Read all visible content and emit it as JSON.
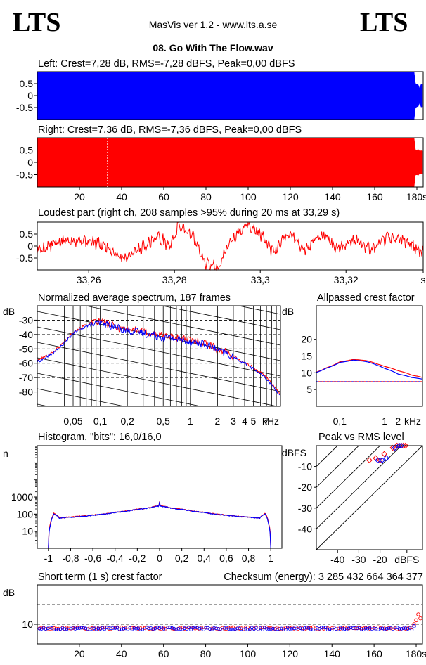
{
  "header": {
    "logo_left": "LTS",
    "logo_right": "LTS",
    "app_title": "MasVis ver 1.2 - www.lts.a.se",
    "file_name": "08. Go With The Flow.wav"
  },
  "chart_data": [
    {
      "id": "left-waveform",
      "type": "area",
      "title": "Left: Crest=7,28 dB, RMS=-7,28 dBFS, Peak=0,00 dBFS",
      "ylim": [
        -1,
        1
      ],
      "y_ticks": [
        "0.5",
        "0",
        "-0.5"
      ],
      "y_tick_values": [
        0.5,
        0,
        -0.5
      ],
      "xlim": [
        0,
        183
      ],
      "color": "#0000ff",
      "peak_level": 1.0,
      "fade_out_start_s": 179
    },
    {
      "id": "right-waveform",
      "type": "area",
      "title": "Right: Crest=7,36 dB, RMS=-7,36 dBFS, Peak=0,00 dBFS",
      "ylim": [
        -1,
        1
      ],
      "y_ticks": [
        "0.5",
        "0",
        "-0.5"
      ],
      "y_tick_values": [
        0.5,
        0,
        -0.5
      ],
      "xlim": [
        0,
        183
      ],
      "x_ticks": [
        "20",
        "40",
        "60",
        "80",
        "100",
        "120",
        "140",
        "160",
        "180s"
      ],
      "x_tick_values": [
        20,
        40,
        60,
        80,
        100,
        120,
        140,
        160,
        180
      ],
      "loudest_marker_s": 33.29,
      "color": "#ff0000",
      "peak_level": 1.0,
      "fade_out_start_s": 179
    },
    {
      "id": "loudest-part",
      "type": "line",
      "title": "Loudest part (right ch, 208 samples >95% during 20 ms at 33,29 s)",
      "xlim": [
        33.248,
        33.338
      ],
      "ylim": [
        -1,
        1
      ],
      "y_ticks": [
        "0.5",
        "0",
        "-0.5"
      ],
      "y_tick_values": [
        0.5,
        0,
        -0.5
      ],
      "x_ticks": [
        "33,26",
        "33,28",
        "33,3",
        "33,32",
        "s"
      ],
      "x_tick_values": [
        33.26,
        33.28,
        33.3,
        33.32,
        33.338
      ],
      "color": "#ff0000",
      "envelope_x": [
        33.248,
        33.252,
        33.256,
        33.26,
        33.264,
        33.268,
        33.272,
        33.276,
        33.279,
        33.281,
        33.284,
        33.287,
        33.29,
        33.293,
        33.297,
        33.3,
        33.303,
        33.307,
        33.31,
        33.314,
        33.318,
        33.322,
        33.326,
        33.33,
        33.334,
        33.338
      ],
      "envelope_y": [
        -0.2,
        0.1,
        0.3,
        0.2,
        0.0,
        -0.5,
        -0.1,
        0.4,
        0.0,
        0.9,
        0.5,
        -0.7,
        -0.9,
        0.2,
        0.9,
        0.5,
        -0.3,
        0.6,
        -0.2,
        0.5,
        -0.1,
        0.3,
        -0.2,
        0.4,
        0.2,
        -0.3
      ]
    },
    {
      "id": "spectrum",
      "type": "line",
      "title": "Normalized average spectrum, 187 frames",
      "ylabel": "dB",
      "xscale": "log",
      "xlim": [
        0.02,
        10
      ],
      "ylim": [
        -90,
        -20
      ],
      "y_ticks": [
        "-30",
        "-40",
        "-50",
        "-60",
        "-70",
        "-80"
      ],
      "y_tick_values": [
        -30,
        -40,
        -50,
        -60,
        -70,
        -80
      ],
      "x_ticks": [
        "0,05",
        "0,1",
        "0,2",
        "0,5",
        "1",
        "2",
        "3",
        "4",
        "5",
        "7",
        "kHz"
      ],
      "x_tick_values": [
        0.05,
        0.1,
        0.2,
        0.5,
        1,
        2,
        3,
        4,
        5,
        7,
        10
      ],
      "series": [
        {
          "color": "#ff0000",
          "x": [
            0.02,
            0.03,
            0.04,
            0.05,
            0.07,
            0.1,
            0.15,
            0.2,
            0.3,
            0.5,
            0.7,
            1,
            1.5,
            2,
            3,
            4,
            5,
            7,
            10
          ],
          "y": [
            -58,
            -52,
            -45,
            -38,
            -33,
            -31,
            -35,
            -36,
            -38,
            -41,
            -42,
            -44,
            -46,
            -50,
            -55,
            -60,
            -63,
            -70,
            -82
          ]
        },
        {
          "color": "#0000ff",
          "x": [
            0.02,
            0.03,
            0.04,
            0.05,
            0.07,
            0.1,
            0.15,
            0.2,
            0.3,
            0.5,
            0.7,
            1,
            1.5,
            2,
            3,
            4,
            5,
            7,
            10
          ],
          "y": [
            -59,
            -53,
            -46,
            -39,
            -34,
            -32,
            -35,
            -37,
            -39,
            -42,
            -43,
            -45,
            -47,
            -51,
            -56,
            -60,
            -64,
            -71,
            -83
          ]
        }
      ]
    },
    {
      "id": "allpassed-crest",
      "type": "line",
      "title": "Allpassed crest factor",
      "ylabel": "dB",
      "xscale": "log",
      "xlim": [
        0.03,
        7
      ],
      "ylim": [
        0,
        30
      ],
      "y_ticks": [
        "20",
        "15",
        "10",
        "5"
      ],
      "y_tick_values": [
        20,
        15,
        10,
        5
      ],
      "x_ticks": [
        "0,1",
        "1",
        "2",
        "kHz"
      ],
      "x_tick_values": [
        0.1,
        1,
        2,
        5
      ],
      "reference_level": 7.3,
      "series": [
        {
          "color": "#ff0000",
          "x": [
            0.03,
            0.05,
            0.1,
            0.2,
            0.4,
            0.7,
            1,
            2,
            4,
            7
          ],
          "y": [
            10.2,
            11.5,
            13.3,
            14.0,
            13.6,
            12.6,
            11.9,
            10.6,
            9.3,
            8.6
          ]
        },
        {
          "color": "#0000ff",
          "x": [
            0.03,
            0.05,
            0.1,
            0.2,
            0.4,
            0.7,
            1,
            2,
            4,
            7
          ],
          "y": [
            10.1,
            11.4,
            13.1,
            13.8,
            13.3,
            12.2,
            11.3,
            9.6,
            8.6,
            8.1
          ]
        }
      ]
    },
    {
      "id": "histogram",
      "type": "line",
      "title": "Histogram, \"bits\": 16,0/16,0",
      "ylabel": "n",
      "yscale": "log",
      "xlim": [
        -1.1,
        1.1
      ],
      "ylim": [
        1,
        1000000
      ],
      "y_ticks": [
        "1000",
        "100",
        "10"
      ],
      "y_tick_values": [
        1000,
        100,
        10
      ],
      "x_ticks": [
        "-1",
        "-0,8",
        "-0,6",
        "-0,4",
        "-0,2",
        "0",
        "0,2",
        "0,4",
        "0,6",
        "0,8",
        "1"
      ],
      "x_tick_values": [
        -1,
        -0.8,
        -0.6,
        -0.4,
        -0.2,
        0,
        0.2,
        0.4,
        0.6,
        0.8,
        1
      ],
      "series": [
        {
          "color": "#ff0000",
          "x": [
            -1,
            -0.98,
            -0.95,
            -0.92,
            -0.9,
            -0.7,
            -0.5,
            -0.3,
            -0.1,
            0,
            0.1,
            0.3,
            0.5,
            0.7,
            0.9,
            0.92,
            0.95,
            0.98,
            1
          ],
          "y": [
            1,
            30,
            110,
            80,
            60,
            75,
            100,
            150,
            230,
            320,
            230,
            150,
            100,
            75,
            60,
            80,
            110,
            30,
            1
          ]
        },
        {
          "color": "#0000ff",
          "x": [
            -1,
            -0.98,
            -0.95,
            -0.92,
            -0.9,
            -0.7,
            -0.5,
            -0.3,
            -0.1,
            0,
            0.1,
            0.3,
            0.5,
            0.7,
            0.9,
            0.92,
            0.95,
            0.98,
            1
          ],
          "y": [
            1,
            25,
            100,
            75,
            58,
            72,
            98,
            148,
            225,
            300,
            225,
            148,
            98,
            72,
            58,
            75,
            100,
            25,
            1
          ]
        }
      ]
    },
    {
      "id": "peak-vs-rms",
      "type": "scatter",
      "title": "Peak vs RMS level",
      "ylabel": "dBFS",
      "xlim": [
        -50,
        0
      ],
      "ylim": [
        -50,
        0
      ],
      "x_ticks": [
        "-40",
        "-30",
        "-20",
        "dBFS"
      ],
      "x_tick_values": [
        -40,
        -30,
        -20,
        -10
      ],
      "y_ticks": [
        "-10",
        "-20",
        "-30",
        "-40"
      ],
      "y_tick_values": [
        -10,
        -20,
        -30,
        -40
      ],
      "crest_lines": [
        "40",
        "30",
        "20",
        "10",
        "0 dB"
      ],
      "crest_values": [
        40,
        30,
        20,
        10,
        0
      ],
      "series": [
        {
          "color": "#ff0000",
          "x": [
            -25,
            -22,
            -20,
            -18,
            -14,
            -13,
            -12,
            -11,
            -10,
            -9,
            -8
          ],
          "y": [
            -7,
            -6,
            -7,
            -4,
            -1,
            -1,
            0,
            0,
            0,
            0,
            0
          ]
        },
        {
          "color": "#0000ff",
          "x": [
            -21,
            -19,
            -17,
            -13,
            -11,
            -10
          ],
          "y": [
            -7,
            -7,
            -6,
            -1,
            0,
            0
          ]
        }
      ]
    },
    {
      "id": "short-term-crest",
      "type": "scatter",
      "title": "Short term (1 s) crest factor",
      "annotation": "Checksum (energy):  3 285 432 664 364 377",
      "ylabel": "dB",
      "xlim": [
        0,
        183
      ],
      "ylim": [
        0,
        30
      ],
      "y_ticks": [
        "10"
      ],
      "y_tick_values": [
        10
      ],
      "x_ticks": [
        "20",
        "40",
        "60",
        "80",
        "100",
        "120",
        "140",
        "160",
        "180s"
      ],
      "x_tick_values": [
        20,
        40,
        60,
        80,
        100,
        120,
        140,
        160,
        180
      ],
      "dashed_levels": [
        20,
        10
      ],
      "series": [
        {
          "color": "#ff0000",
          "level": 8.0,
          "end_points": [
            [
              179,
              10
            ],
            [
              180,
              12
            ],
            [
              181,
              15
            ],
            [
              182,
              13
            ]
          ]
        },
        {
          "color": "#0000ff",
          "level": 7.8,
          "end_points": [
            [
              179,
              9
            ]
          ]
        }
      ]
    }
  ]
}
